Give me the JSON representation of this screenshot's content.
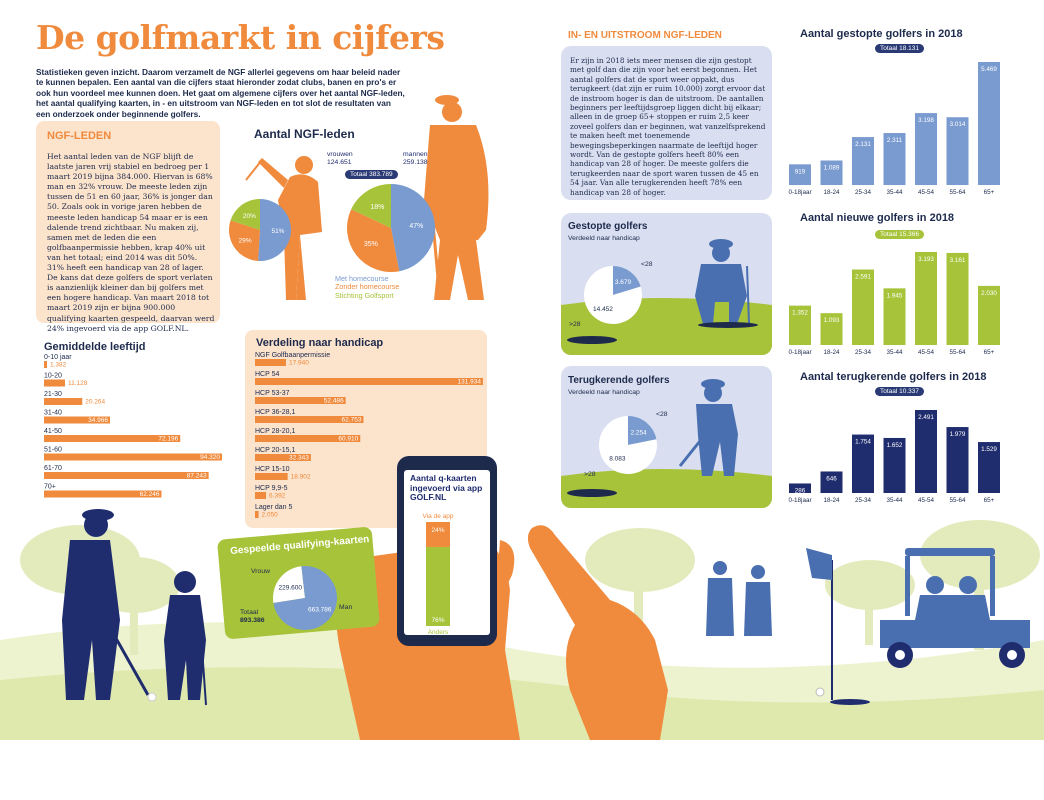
{
  "header": {
    "title": "De golfmarkt in cijfers",
    "intro": "Statistieken geven inzicht. Daarom verzamelt de NGF allerlei gegevens om haar beleid nader te kunnen bepalen. Een aantal van die cijfers staat hieronder zodat clubs, banen en pro's er ook hun voordeel mee kunnen doen. Het gaat om algemene cijfers over het aantal NGF-leden, het aantal qualifying kaarten, in - en uitstroom van NGF-leden en tot slot de resultaten van een onderzoek onder beginnende golfers."
  },
  "ngf_leden": {
    "heading": "NGF-LEDEN",
    "text": "Het aantal leden van de NGF blijft de laatste jaren vrij stabiel en bedroeg per 1 maart 2019 bijna 384.000. Hiervan is 68% man en 32% vrouw. De meeste leden zijn tussen de 51 en 60 jaar, 36% is jonger dan 50. Zoals ook in vorige jaren hebben de meeste leden handicap 54 maar er is een dalende trend zichtbaar. Nu maken zij, samen met de leden die een golfbaanpermissie hebben, krap 40% uit van het totaal; eind 2014 was dit 50%. 31% heeft een handicap van 28 of lager. De kans dat deze golfers de sport verlaten is aanzienlijk kleiner dan bij golfers met een hogere handicap. Van maart 2018 tot maart 2019 zijn er bijna 900.000 qualifying kaarten gespeeld, daarvan werd 24% ingevoerd via de app GOLF.NL."
  },
  "in_uitstroom": {
    "heading": "IN- EN UITSTROOM NGF-LEDEN",
    "text": "Er zijn in 2018 iets meer mensen die zijn gestopt met golf dan die zijn voor het eerst begonnen. Het aantal golfers dat de sport weer oppakt, dus terugkeert (dat zijn er ruim 10.000) zorgt ervoor dat de instroom hoger is dan de uitstroom. De aantallen beginners per leeftijdsgroep liggen dicht bij elkaar; alleen in de groep 65+ stoppen er ruim 2,5 keer zoveel golfers dan er beginnen, wat vanzelfsprekend te maken heeft met toenemende bewegingsbeperkingen naarmate de leeftijd hoger wordt. Van de gestopte golfers heeft 80% een handicap van 28 of hoger. De meeste golfers die terugkeerden naar de sport waren tussen de 45 en 54 jaar. Van alle terugkerenden heeft 78% een handicap van 28 of hoger."
  },
  "colors": {
    "navy": "#1d2a4c",
    "orange": "#f08a3c",
    "lightblue": "#7a9bcf",
    "green": "#a7c33a",
    "darknavy": "#1f2c6e",
    "peach": "#fbe3cc",
    "paleblue": "#d9dff0"
  },
  "icons": [
    "golfer-woman-icon",
    "golfer-man-icon",
    "smartphone-icon",
    "hand-icon",
    "pointing-hand-icon",
    "golf-cart-icon",
    "golf-flag-icon",
    "crouching-golfer-icon",
    "putting-golfer-icon",
    "tree-icon"
  ],
  "chart_data": [
    {
      "type": "pie",
      "title": "Aantal NGF-leden",
      "total_label": "Totaal 383.789",
      "groups": [
        {
          "name": "vrouwen",
          "total_text": "124.651",
          "slices": [
            {
              "label": "Met homecourse",
              "value": 51
            },
            {
              "label": "Zonder homecourse",
              "value": 29
            },
            {
              "label": "Stichting Golfsport",
              "value": 20
            }
          ]
        },
        {
          "name": "mannen",
          "total_text": "259.138",
          "slices": [
            {
              "label": "Met homecourse",
              "value": 47
            },
            {
              "label": "Zonder homecourse",
              "value": 35
            },
            {
              "label": "Stichting Golfsport",
              "value": 18
            }
          ]
        }
      ],
      "legend": [
        "Met homecourse",
        "Zonder homecourse",
        "Stichting Golfsport"
      ]
    },
    {
      "type": "bar",
      "title": "Gemiddelde leeftijd",
      "categories": [
        "0-10 jaar",
        "10-20",
        "21-30",
        "31-40",
        "41-50",
        "51-60",
        "61-70",
        "70+"
      ],
      "values": [
        1382,
        11128,
        20264,
        34966,
        72196,
        94320,
        87243,
        62246
      ],
      "value_labels": [
        "1.382",
        "11.128",
        "20.264",
        "34.966",
        "72.196",
        "94.320",
        "87.243",
        "62.246"
      ]
    },
    {
      "type": "bar",
      "title": "Verdeling naar handicap",
      "categories": [
        "NGF Golfbaanpermissie",
        "HCP 54",
        "HCP 53-37",
        "HCP 36-28,1",
        "HCP 28-20,1",
        "HCP 20-15,1",
        "HCP 15-10",
        "HCP 9,9-5",
        "Lager dan 5"
      ],
      "values": [
        17940,
        131934,
        52486,
        62753,
        60910,
        32343,
        18902,
        6392,
        2050
      ],
      "value_labels": [
        "17.940",
        "131.934",
        "52.486",
        "62.753",
        "60.910",
        "32.343",
        "18.902",
        "6.392",
        "2.050"
      ]
    },
    {
      "type": "pie",
      "title": "Gespeelde qualifying-kaarten",
      "total_label": "Totaal",
      "total_value": "893.386",
      "slices": [
        {
          "label": "Vrouw",
          "value": 229600,
          "value_text": "229.600"
        },
        {
          "label": "Man",
          "value": 663786,
          "value_text": "663.786"
        }
      ]
    },
    {
      "type": "bar",
      "title": "Aantal q-kaarten ingevoerd via app GOLF.NL",
      "categories": [
        "Via de app",
        "Anders"
      ],
      "values": [
        24,
        76
      ],
      "value_labels": [
        "24%",
        "76%"
      ]
    },
    {
      "type": "pie",
      "title": "Gestopte golfers",
      "subtitle": "Verdeeld naar handicap",
      "slices": [
        {
          "label": "<28",
          "value": 3679,
          "value_text": "3.679"
        },
        {
          "label": ">28",
          "value": 14452,
          "value_text": "14.452"
        }
      ]
    },
    {
      "type": "pie",
      "title": "Terugkerende golfers",
      "subtitle": "Verdeeld naar handicap",
      "slices": [
        {
          "label": "<28",
          "value": 2254,
          "value_text": "2.254"
        },
        {
          "label": ">28",
          "value": 8083,
          "value_text": "8.083"
        }
      ]
    },
    {
      "type": "bar",
      "title": "Aantal gestopte golfers in 2018",
      "total_label": "Totaal 18.131",
      "categories": [
        "0-18jaar",
        "18-24",
        "25-34",
        "35-44",
        "45-54",
        "55-64",
        "65+"
      ],
      "values": [
        919,
        1089,
        2131,
        2311,
        3198,
        3014,
        5469
      ],
      "value_labels": [
        "919",
        "1.089",
        "2.131",
        "2.311",
        "3.198",
        "3.014",
        "5.469"
      ]
    },
    {
      "type": "bar",
      "title": "Aantal nieuwe golfers in 2018",
      "total_label": "Totaal 15.366",
      "categories": [
        "0-18jaar",
        "18-24",
        "25-34",
        "35-44",
        "45-54",
        "55-64",
        "65+"
      ],
      "values": [
        1352,
        1093,
        2591,
        1945,
        3193,
        3161,
        2030
      ],
      "value_labels": [
        "1.352",
        "1.093",
        "2.591",
        "1.945",
        "3.193",
        "3.161",
        "2.030"
      ]
    },
    {
      "type": "bar",
      "title": "Aantal terugkerende golfers in 2018",
      "total_label": "Totaal 10.337",
      "categories": [
        "0-18jaar",
        "18-24",
        "25-34",
        "35-44",
        "45-54",
        "55-64",
        "65+"
      ],
      "values": [
        286,
        646,
        1754,
        1652,
        2491,
        1979,
        1529
      ],
      "value_labels": [
        "286",
        "646",
        "1.754",
        "1.652",
        "2.491",
        "1.979",
        "1.529"
      ]
    }
  ]
}
